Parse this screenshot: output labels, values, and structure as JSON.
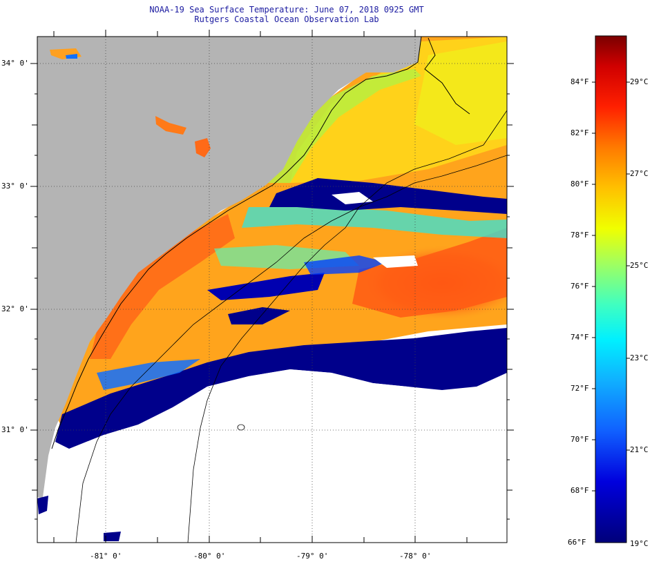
{
  "title": {
    "line1": "NOAA-19 Sea Surface Temperature:  June 07, 2018 0925 GMT",
    "line2": "Rutgers Coastal Ocean Observation Lab"
  },
  "latitude_labels": [
    "34° 0'",
    "33° 0'",
    "32° 0'",
    "31° 0'"
  ],
  "longitude_labels": [
    "-81° 0'",
    "-80° 0'",
    "-79° 0'",
    "-78° 0'"
  ],
  "colorbar": {
    "fahrenheit_labels": [
      "84°F",
      "82°F",
      "80°F",
      "78°F",
      "76°F",
      "74°F",
      "72°F",
      "70°F",
      "68°F",
      "66°F"
    ],
    "celsius_labels": [
      "29°C",
      "27°C",
      "25°C",
      "23°C",
      "21°C",
      "19°C"
    ]
  },
  "colors": {
    "land": "#b4b4b4",
    "cloud_mask": "#ffffff",
    "cold": "#00008b",
    "warm": "#ff6a10",
    "title": "#1a1aa0"
  }
}
